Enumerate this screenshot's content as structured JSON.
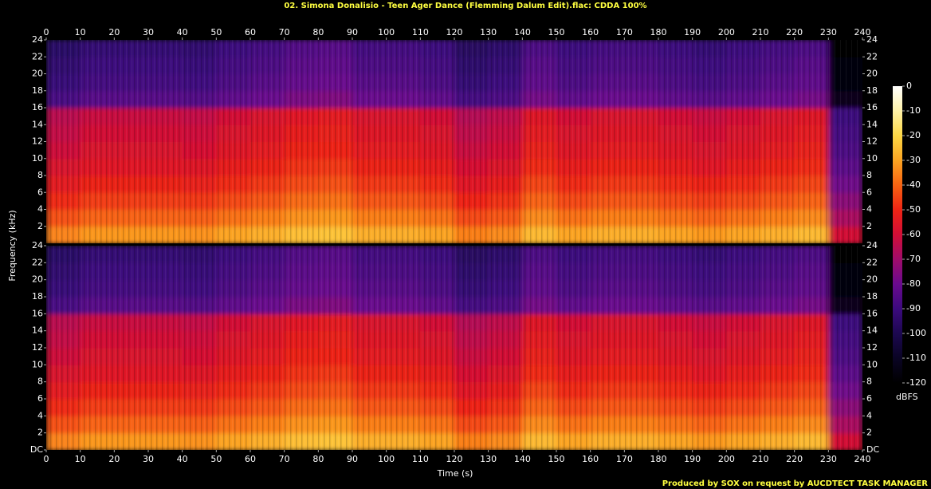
{
  "title": "02. Simona Donalisio - Teen Ager Dance (Flemming Dalum Edit).flac: CDDA 100%",
  "xlabel": "Time (s)",
  "ylabel": "Frequency (kHz)",
  "footer": "Produced by SOX on request by AUCDTECT TASK MANAGER",
  "colorbar": {
    "label": "dBFS",
    "ticks": [
      0,
      -10,
      -20,
      -30,
      -40,
      -50,
      -60,
      -70,
      -80,
      -90,
      -100,
      -110,
      -120
    ],
    "colors": [
      "#ffffff",
      "#fff2a8",
      "#fdd845",
      "#fca422",
      "#f86412",
      "#ee2414",
      "#d20e36",
      "#a00c6a",
      "#6a0a8e",
      "#3c0a7e",
      "#1c0850",
      "#0a0424",
      "#000000"
    ]
  },
  "chart_data": [
    {
      "type": "heatmap",
      "xlim": [
        0,
        240
      ],
      "ylim": [
        0,
        24
      ],
      "xticks": [
        0,
        10,
        20,
        30,
        40,
        50,
        60,
        70,
        80,
        90,
        100,
        110,
        120,
        130,
        140,
        150,
        160,
        170,
        180,
        190,
        200,
        210,
        220,
        230,
        240
      ],
      "yticks": [
        2,
        4,
        6,
        8,
        10,
        12,
        14,
        16,
        18,
        20,
        22,
        24
      ],
      "xbins": [
        0,
        10,
        20,
        30,
        40,
        50,
        60,
        70,
        80,
        90,
        100,
        110,
        120,
        130,
        140,
        150,
        160,
        170,
        180,
        190,
        200,
        210,
        220,
        230,
        240
      ],
      "ybins": [
        0,
        2,
        4,
        6,
        8,
        10,
        12,
        14,
        16,
        18,
        20,
        22,
        24
      ],
      "z": [
        [
          -35,
          -32,
          -32,
          -32,
          -33,
          -30,
          -28,
          -25,
          -24,
          -28,
          -28,
          -30,
          -36,
          -34,
          -26,
          -30,
          -28,
          -28,
          -30,
          -32,
          -30,
          -28,
          -26,
          -60
        ],
        [
          -43,
          -40,
          -40,
          -40,
          -41,
          -38,
          -36,
          -33,
          -32,
          -36,
          -36,
          -38,
          -44,
          -42,
          -34,
          -38,
          -36,
          -36,
          -38,
          -40,
          -38,
          -36,
          -34,
          -68
        ],
        [
          -49,
          -46,
          -46,
          -46,
          -47,
          -44,
          -42,
          -39,
          -38,
          -42,
          -42,
          -44,
          -50,
          -48,
          -40,
          -44,
          -42,
          -42,
          -44,
          -46,
          -44,
          -42,
          -40,
          -74
        ],
        [
          -54,
          -51,
          -51,
          -51,
          -52,
          -49,
          -47,
          -44,
          -43,
          -47,
          -47,
          -49,
          -55,
          -53,
          -45,
          -49,
          -47,
          -47,
          -49,
          -51,
          -49,
          -47,
          -45,
          -79
        ],
        [
          -58,
          -55,
          -55,
          -55,
          -56,
          -53,
          -51,
          -48,
          -47,
          -51,
          -51,
          -53,
          -59,
          -57,
          -49,
          -53,
          -51,
          -51,
          -53,
          -55,
          -53,
          -51,
          -49,
          -83
        ],
        [
          -61,
          -58,
          -58,
          -58,
          -59,
          -56,
          -54,
          -51,
          -50,
          -54,
          -54,
          -56,
          -62,
          -60,
          -52,
          -56,
          -54,
          -54,
          -56,
          -58,
          -56,
          -54,
          -52,
          -86
        ],
        [
          -63,
          -60,
          -60,
          -60,
          -61,
          -58,
          -56,
          -53,
          -52,
          -56,
          -56,
          -58,
          -64,
          -62,
          -54,
          -58,
          -56,
          -56,
          -58,
          -60,
          -58,
          -56,
          -54,
          -88
        ],
        [
          -65,
          -62,
          -62,
          -62,
          -63,
          -60,
          -58,
          -55,
          -54,
          -58,
          -58,
          -60,
          -66,
          -64,
          -56,
          -60,
          -58,
          -58,
          -60,
          -62,
          -60,
          -58,
          -56,
          -90
        ],
        [
          -87,
          -84,
          -84,
          -84,
          -85,
          -82,
          -80,
          -77,
          -76,
          -80,
          -80,
          -82,
          -88,
          -86,
          -78,
          -82,
          -80,
          -80,
          -82,
          -84,
          -82,
          -80,
          -78,
          -112
        ],
        [
          -91,
          -88,
          -88,
          -88,
          -89,
          -86,
          -84,
          -81,
          -80,
          -84,
          -84,
          -86,
          -92,
          -90,
          -82,
          -86,
          -84,
          -84,
          -86,
          -88,
          -86,
          -84,
          -82,
          -116
        ],
        [
          -93,
          -90,
          -90,
          -90,
          -91,
          -88,
          -86,
          -83,
          -82,
          -86,
          -86,
          -88,
          -94,
          -92,
          -84,
          -88,
          -86,
          -86,
          -88,
          -90,
          -88,
          -86,
          -84,
          -118
        ],
        [
          -95,
          -92,
          -92,
          -92,
          -93,
          -90,
          -88,
          -85,
          -84,
          -88,
          -88,
          -90,
          -96,
          -94,
          -86,
          -90,
          -88,
          -88,
          -90,
          -92,
          -90,
          -88,
          -86,
          -120
        ]
      ]
    },
    {
      "type": "heatmap",
      "xlim": [
        0,
        240
      ],
      "ylim": [
        0,
        24
      ],
      "xticks": [
        0,
        10,
        20,
        30,
        40,
        50,
        60,
        70,
        80,
        90,
        100,
        110,
        120,
        130,
        140,
        150,
        160,
        170,
        180,
        190,
        200,
        210,
        220,
        230,
        240
      ],
      "yticks": [
        {
          "value": 0,
          "label": "DC"
        },
        2,
        4,
        6,
        8,
        10,
        12,
        14,
        16,
        18,
        20,
        22,
        24
      ],
      "xbins": [
        0,
        10,
        20,
        30,
        40,
        50,
        60,
        70,
        80,
        90,
        100,
        110,
        120,
        130,
        140,
        150,
        160,
        170,
        180,
        190,
        200,
        210,
        220,
        230,
        240
      ],
      "ybins": [
        0,
        2,
        4,
        6,
        8,
        10,
        12,
        14,
        16,
        18,
        20,
        22,
        24
      ],
      "z": [
        [
          -35,
          -32,
          -32,
          -32,
          -33,
          -30,
          -28,
          -25,
          -24,
          -28,
          -28,
          -30,
          -36,
          -34,
          -26,
          -30,
          -28,
          -28,
          -30,
          -32,
          -30,
          -28,
          -26,
          -60
        ],
        [
          -43,
          -40,
          -40,
          -40,
          -41,
          -38,
          -36,
          -33,
          -32,
          -36,
          -36,
          -38,
          -44,
          -42,
          -34,
          -38,
          -36,
          -36,
          -38,
          -40,
          -38,
          -36,
          -34,
          -68
        ],
        [
          -49,
          -46,
          -46,
          -46,
          -47,
          -44,
          -42,
          -39,
          -38,
          -42,
          -42,
          -44,
          -50,
          -48,
          -40,
          -44,
          -42,
          -42,
          -44,
          -46,
          -44,
          -42,
          -40,
          -74
        ],
        [
          -54,
          -51,
          -51,
          -51,
          -52,
          -49,
          -47,
          -44,
          -43,
          -47,
          -47,
          -49,
          -55,
          -53,
          -45,
          -49,
          -47,
          -47,
          -49,
          -51,
          -49,
          -47,
          -45,
          -79
        ],
        [
          -58,
          -55,
          -55,
          -55,
          -56,
          -53,
          -51,
          -48,
          -47,
          -51,
          -51,
          -53,
          -59,
          -57,
          -49,
          -53,
          -51,
          -51,
          -53,
          -55,
          -53,
          -51,
          -49,
          -83
        ],
        [
          -61,
          -58,
          -58,
          -58,
          -59,
          -56,
          -54,
          -51,
          -50,
          -54,
          -54,
          -56,
          -62,
          -60,
          -52,
          -56,
          -54,
          -54,
          -56,
          -58,
          -56,
          -54,
          -52,
          -86
        ],
        [
          -63,
          -60,
          -60,
          -60,
          -61,
          -58,
          -56,
          -53,
          -52,
          -56,
          -56,
          -58,
          -64,
          -62,
          -54,
          -58,
          -56,
          -56,
          -58,
          -60,
          -58,
          -56,
          -54,
          -88
        ],
        [
          -65,
          -62,
          -62,
          -62,
          -63,
          -60,
          -58,
          -55,
          -54,
          -58,
          -58,
          -60,
          -66,
          -64,
          -56,
          -60,
          -58,
          -58,
          -60,
          -62,
          -60,
          -58,
          -56,
          -90
        ],
        [
          -87,
          -84,
          -84,
          -84,
          -85,
          -82,
          -80,
          -77,
          -76,
          -80,
          -80,
          -82,
          -88,
          -86,
          -78,
          -82,
          -80,
          -80,
          -82,
          -84,
          -82,
          -80,
          -78,
          -112
        ],
        [
          -91,
          -88,
          -88,
          -88,
          -89,
          -86,
          -84,
          -81,
          -80,
          -84,
          -84,
          -86,
          -92,
          -90,
          -82,
          -86,
          -84,
          -84,
          -86,
          -88,
          -86,
          -84,
          -82,
          -116
        ],
        [
          -93,
          -90,
          -90,
          -90,
          -91,
          -88,
          -86,
          -83,
          -82,
          -86,
          -86,
          -88,
          -94,
          -92,
          -84,
          -88,
          -86,
          -86,
          -88,
          -90,
          -88,
          -86,
          -84,
          -118
        ],
        [
          -95,
          -92,
          -92,
          -92,
          -93,
          -90,
          -88,
          -85,
          -84,
          -88,
          -88,
          -90,
          -96,
          -94,
          -86,
          -90,
          -88,
          -88,
          -90,
          -92,
          -90,
          -88,
          -86,
          -120
        ]
      ]
    }
  ]
}
